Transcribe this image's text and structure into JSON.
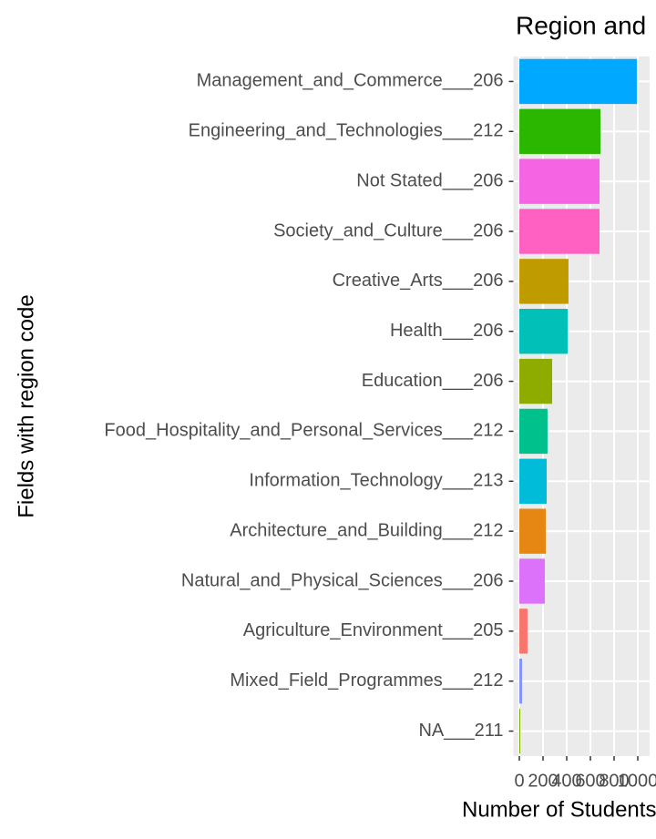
{
  "chart_data": {
    "type": "barh",
    "title": "Region and",
    "x_label": "Number of Students",
    "y_label": "Fields with region code",
    "categories": [
      "Management_and_Commerce___206",
      "Engineering_and_Technologies___212",
      "Not Stated___206",
      "Society_and_Culture___206",
      "Creative_Arts___206",
      "Health___206",
      "Education___206",
      "Food_Hospitality_and_Personal_Services___212",
      "Information_Technology___213",
      "Architecture_and_Building___212",
      "Natural_and_Physical_Sciences___206",
      "Agriculture_Environment___205",
      "Mixed_Field_Programmes___212",
      "NA___211"
    ],
    "values": [
      992,
      685,
      677,
      677,
      415,
      408,
      277,
      238,
      231,
      223,
      215,
      69,
      23,
      8
    ],
    "colors": [
      "#00A9FF",
      "#2BB600",
      "#F564E3",
      "#FF61C3",
      "#C09B00",
      "#00C0B8",
      "#8EAB00",
      "#00C08B",
      "#00BCD8",
      "#E68613",
      "#DC71FA",
      "#F8766D",
      "#8494FF",
      "#7CAE00"
    ],
    "xlim": [
      -50,
      1100
    ],
    "xticks": [
      0,
      200,
      400,
      600,
      800,
      1000
    ],
    "grid": true
  }
}
